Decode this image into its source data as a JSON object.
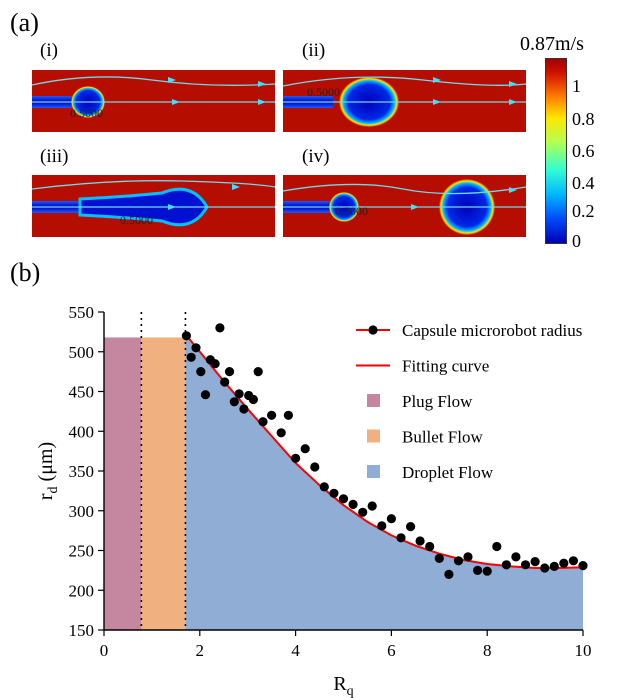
{
  "panel_a_label": "(a)",
  "panel_b_label": "(b)",
  "sims": [
    {
      "label": "(i)",
      "contour": "0.5000"
    },
    {
      "label": "(ii)",
      "contour": "0.5000"
    },
    {
      "label": "(iii)",
      "contour": "0.5000"
    },
    {
      "label": "(iv)",
      "contour": "0.5000"
    }
  ],
  "colorbar": {
    "title": "0.87m/s",
    "ticks": [
      "1",
      "0.8",
      "0.6",
      "0.4",
      "0.2",
      "0"
    ]
  },
  "chart_data": {
    "type": "scatter",
    "xlabel": "R",
    "xlabel_sub": "q",
    "ylabel": "r",
    "ylabel_sub": "d",
    "ylabel_unit": " (μm)",
    "xlim": [
      0,
      10
    ],
    "ylim": [
      150,
      550
    ],
    "xticks": [
      0,
      2,
      4,
      6,
      8,
      10
    ],
    "yticks": [
      150,
      200,
      250,
      300,
      350,
      400,
      450,
      500,
      550
    ],
    "regions": [
      {
        "name": "Plug Flow",
        "x0": 0,
        "x1": 0.78,
        "top": 518,
        "color": "#c5879f"
      },
      {
        "name": "Bullet Flow",
        "x0": 0.78,
        "x1": 1.7,
        "top": 518,
        "color": "#f0b07f"
      },
      {
        "name": "Droplet Flow",
        "x0": 1.7,
        "x1": 10,
        "top": 521,
        "color": "#8fadd5"
      }
    ],
    "dividers": [
      0.78,
      1.7
    ],
    "series": [
      {
        "name": "Capsule microrobot radius",
        "marker": "circle",
        "color": "#000000",
        "x": [
          1.72,
          1.82,
          1.92,
          2.02,
          2.12,
          2.22,
          2.32,
          2.42,
          2.52,
          2.62,
          2.72,
          2.82,
          2.92,
          3.02,
          3.12,
          3.22,
          3.32,
          3.5,
          3.7,
          3.85,
          4.0,
          4.2,
          4.4,
          4.6,
          4.8,
          5.0,
          5.2,
          5.4,
          5.6,
          5.8,
          6.0,
          6.2,
          6.4,
          6.6,
          6.8,
          7.0,
          7.2,
          7.4,
          7.6,
          7.8,
          8.0,
          8.2,
          8.4,
          8.6,
          8.8,
          9.0,
          9.2,
          9.4,
          9.6,
          9.8,
          10.0
        ],
        "y": [
          520,
          493,
          505,
          475,
          446,
          490,
          485,
          530,
          462,
          475,
          437,
          447,
          428,
          445,
          440,
          475,
          412,
          420,
          398,
          420,
          366,
          378,
          355,
          330,
          322,
          315,
          308,
          298,
          306,
          281,
          290,
          266,
          280,
          262,
          255,
          240,
          220,
          237,
          242,
          225,
          224,
          255,
          232,
          242,
          232,
          236,
          228,
          230,
          234,
          237,
          231
        ]
      },
      {
        "name": "Fitting curve",
        "marker": "line",
        "color": "#ff0000",
        "x": [
          1.7,
          2.0,
          2.5,
          3.0,
          3.5,
          4.0,
          4.5,
          5.0,
          5.5,
          6.0,
          6.5,
          7.0,
          7.5,
          8.0,
          8.5,
          9.0,
          9.5,
          10.0
        ],
        "y": [
          522,
          500,
          463,
          428,
          394,
          360,
          332,
          307,
          286,
          269,
          256,
          246,
          238,
          233,
          230,
          228,
          228,
          229
        ]
      }
    ],
    "legend_position": "top-right"
  }
}
